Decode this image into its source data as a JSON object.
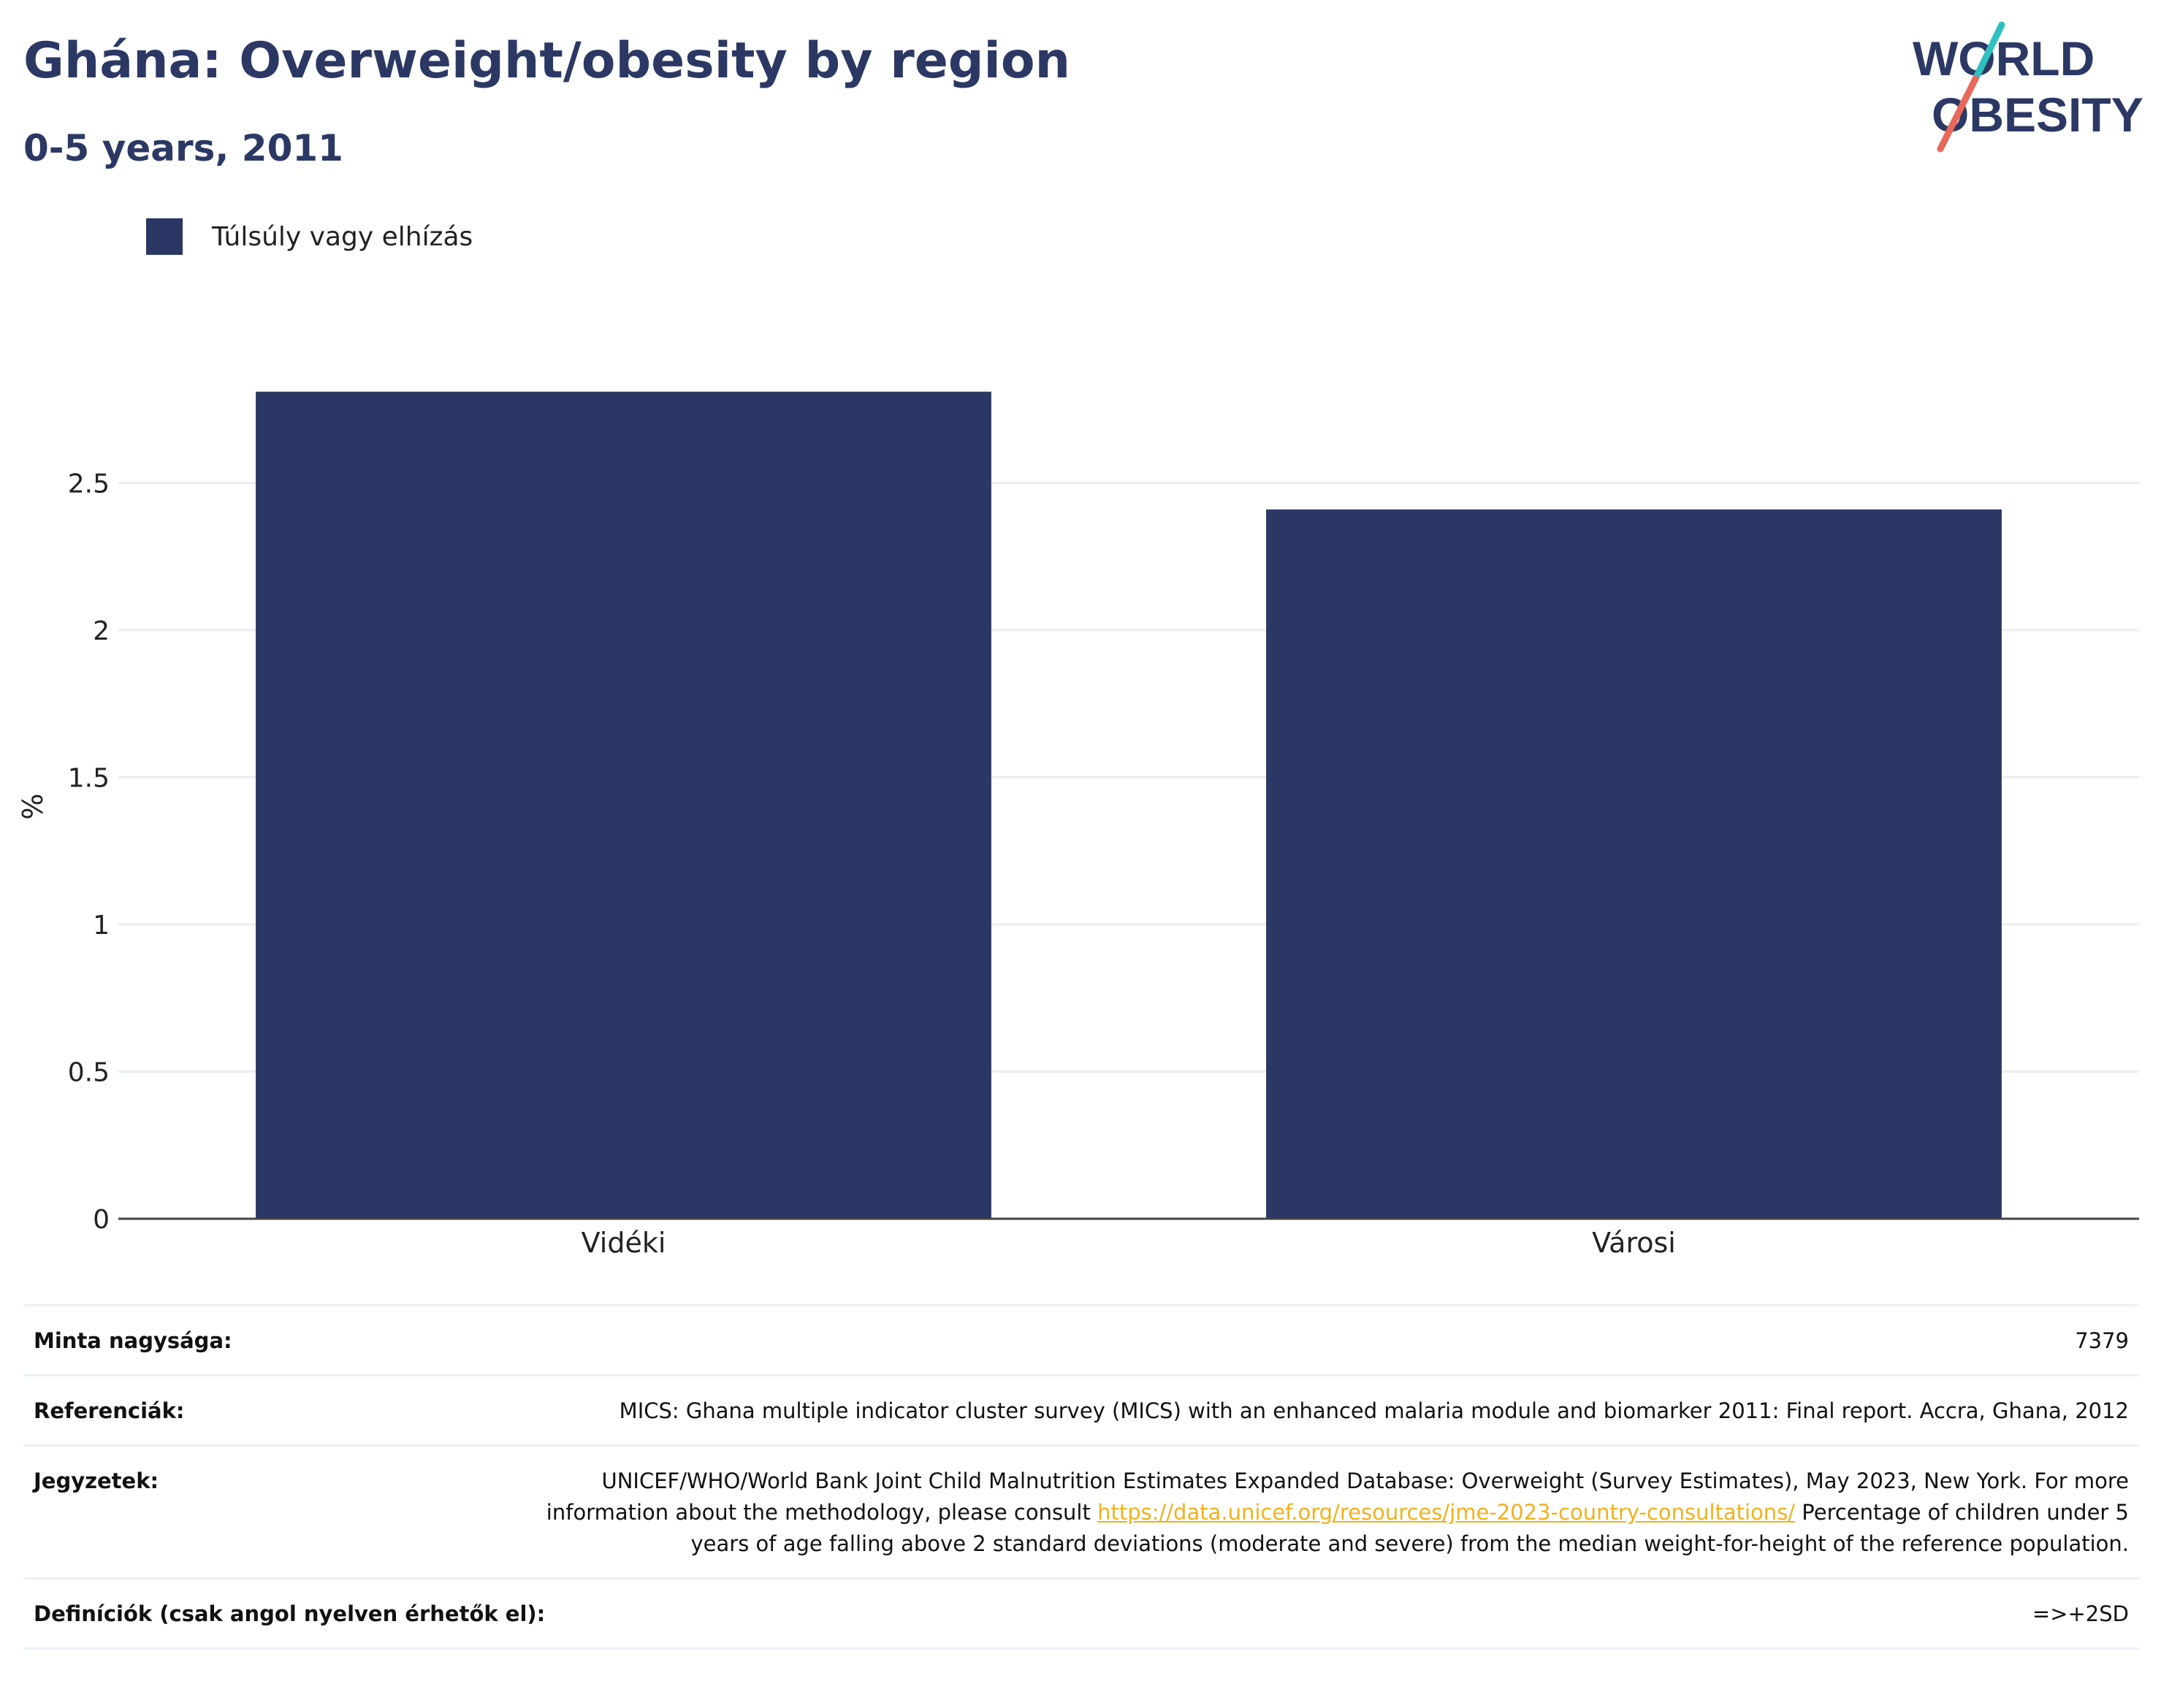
{
  "title": "Ghána: Overweight/obesity by region",
  "subtitle": "0-5 years, 2011",
  "logo": {
    "line1": "WORLD",
    "line2": "OBESITY"
  },
  "colors": {
    "bar": "#2b3764",
    "title": "#2c3864",
    "accent_teal": "#2fc1c0",
    "accent_red": "#e8685a",
    "link": "#f2b11d"
  },
  "chart_data": {
    "type": "bar",
    "categories": [
      "Vidéki",
      "Városi"
    ],
    "series": [
      {
        "name": "Túlsúly vagy elhízás",
        "values": [
          2.81,
          2.41
        ]
      }
    ],
    "ylabel": "%",
    "ylim": [
      0,
      2.95
    ],
    "yticks": [
      0,
      0.5,
      1,
      1.5,
      2,
      2.5
    ],
    "ytick_labels": [
      "0",
      "0.5",
      "1",
      "1.5",
      "2",
      "2.5"
    ],
    "grid": true,
    "legend": "top-left"
  },
  "notes": {
    "sample_label": "Minta nagysága:",
    "sample_value": "7379",
    "references_label": "Referenciák:",
    "references_value": "MICS: Ghana multiple indicator cluster survey (MICS) with an enhanced malaria module and biomarker 2011: Final report. Accra, Ghana, 2012",
    "notes_label": "Jegyzetek:",
    "notes_text_before": "UNICEF/WHO/World Bank Joint Child Malnutrition Estimates Expanded Database: Overweight (Survey Estimates), May 2023, New York. For more information about the methodology, please consult",
    "notes_link": "https://data.unicef.org/resources/jme-2023-country-consultations/",
    "notes_text_after": "Percentage of children under 5 years of age falling above 2 standard deviations (moderate and severe) from the median weight-for-height of the reference population.",
    "definitions_label": "Definíciók (csak angol nyelven érhetők el):",
    "definitions_value": "=>+2SD"
  }
}
